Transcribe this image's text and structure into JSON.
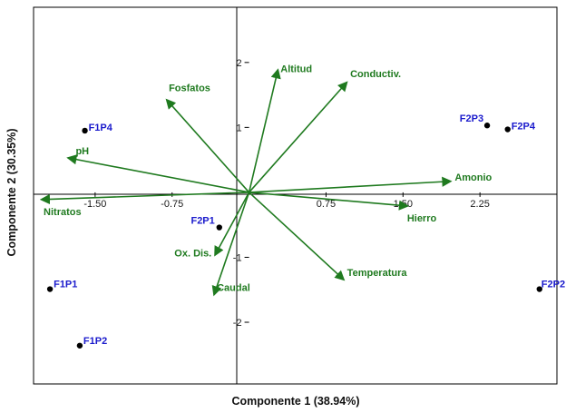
{
  "chart_data": {
    "type": "biplot",
    "xlabel": "Componente 1 (38.94%)",
    "ylabel": "Componente 2 (30.35%)",
    "xlim": [
      -2.1,
      3.0
    ],
    "ylim": [
      -2.95,
      2.85
    ],
    "x_ticks": [
      -1.5,
      -0.75,
      0.75,
      1.5,
      2.25
    ],
    "x_tick_labels": [
      "-1.50",
      "-0.75",
      "0.75",
      "1.50",
      "2.25"
    ],
    "y_ticks": [
      2,
      1,
      -1,
      -2
    ],
    "y_tick_labels": [
      "2",
      "1",
      "-1",
      "-2"
    ],
    "grid": false,
    "vector_color": "#1f7a1f",
    "point_color": "#000000",
    "point_label_color": "#1a1acc",
    "vectors": [
      {
        "name": "Altitud",
        "x": 0.28,
        "y": 1.88
      },
      {
        "name": "Conductiv.",
        "x": 0.95,
        "y": 1.69
      },
      {
        "name": "Fosfatos",
        "x": -0.8,
        "y": 1.42
      },
      {
        "name": "pH",
        "x": -1.76,
        "y": 0.53
      },
      {
        "name": "Nitratos",
        "x": -2.02,
        "y": -0.11
      },
      {
        "name": "Amonio",
        "x": 1.96,
        "y": 0.17
      },
      {
        "name": "Hierro",
        "x": 1.54,
        "y": -0.21
      },
      {
        "name": "Temperatura",
        "x": 0.92,
        "y": -1.34
      },
      {
        "name": "Ox. Dis.",
        "x": -0.33,
        "y": -0.96
      },
      {
        "name": "Caudal",
        "x": -0.34,
        "y": -1.57
      }
    ],
    "points": [
      {
        "name": "F1P4",
        "x": -1.6,
        "y": 0.95
      },
      {
        "name": "F2P3",
        "x": 2.32,
        "y": 1.03
      },
      {
        "name": "F2P4",
        "x": 2.52,
        "y": 0.97
      },
      {
        "name": "F2P1",
        "x": -0.29,
        "y": -0.54
      },
      {
        "name": "F1P1",
        "x": -1.94,
        "y": -1.49
      },
      {
        "name": "F2P2",
        "x": 2.83,
        "y": -1.49
      },
      {
        "name": "F1P2",
        "x": -1.65,
        "y": -2.36
      }
    ]
  }
}
